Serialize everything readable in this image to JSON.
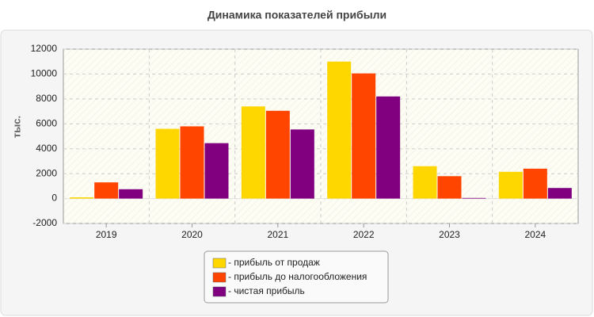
{
  "chart_data": {
    "type": "bar",
    "title": "Динамика показателей прибыли",
    "y_label": "тыс.",
    "categories": [
      "2019",
      "2020",
      "2021",
      "2022",
      "2023",
      "2024"
    ],
    "series": [
      {
        "name": "- прибыль от продаж",
        "color": "#ffd700",
        "values": [
          100,
          5600,
          7400,
          11000,
          2600,
          2150
        ]
      },
      {
        "name": "- прибыль до налогообложения",
        "color": "#ff4500",
        "values": [
          1300,
          5800,
          7050,
          10050,
          1800,
          2400
        ]
      },
      {
        "name": "- чистая прибыль",
        "color": "#800080",
        "values": [
          750,
          4450,
          5550,
          8200,
          50,
          850
        ]
      }
    ],
    "ylim": [
      -2000,
      12000
    ],
    "yticks": [
      -2000,
      0,
      2000,
      4000,
      6000,
      8000,
      10000,
      12000
    ],
    "grid": true
  }
}
